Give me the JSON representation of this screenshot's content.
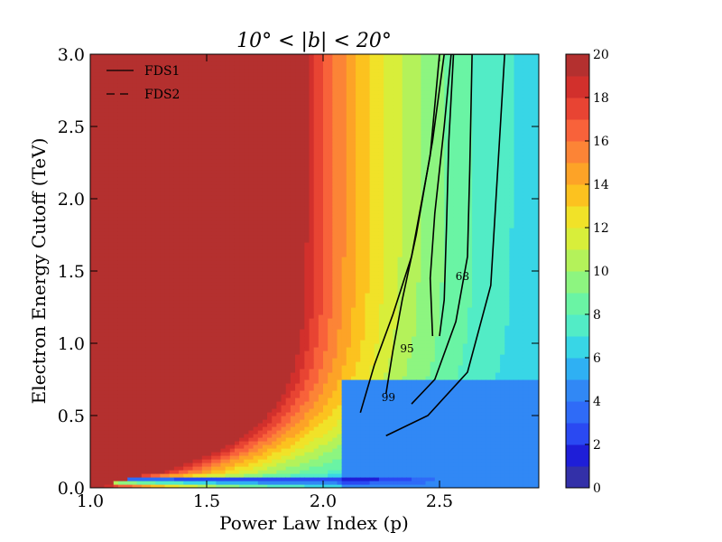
{
  "chart_data": {
    "type": "heatmap",
    "subtype": "filled-contour",
    "title": "10° < |b| < 20°",
    "xlabel": "Power Law Index (p)",
    "ylabel": "Electron Energy Cutoff (TeV)",
    "xlim": [
      1.0,
      3.0
    ],
    "ylim": [
      0.0,
      3.0
    ],
    "xticks": [
      1.0,
      1.5,
      2.0,
      2.5
    ],
    "yticks": [
      0.0,
      0.5,
      1.0,
      1.5,
      2.0,
      2.5,
      3.0
    ],
    "colorbar": {
      "min": 0,
      "max": 20,
      "step": 1,
      "ticks": [
        0,
        2,
        4,
        6,
        8,
        10,
        12,
        14,
        16,
        18,
        20
      ],
      "colors": [
        "#3330a8",
        "#1e1ed8",
        "#2a49f2",
        "#2f6bf7",
        "#3188f5",
        "#2fb0f3",
        "#38d6e6",
        "#52ecc6",
        "#6af4a4",
        "#8df580",
        "#b4f25a",
        "#d8ee3a",
        "#f1e228",
        "#fcc21f",
        "#fda327",
        "#fc8436",
        "#f8623a",
        "#e84433",
        "#d2302c",
        "#b4302f"
      ]
    },
    "legend": {
      "location": "upper-left",
      "entries": [
        {
          "label": "FDS1",
          "style": "solid"
        },
        {
          "label": "FDS2",
          "style": "dashed"
        }
      ]
    },
    "contour_lines": [
      {
        "label": "68",
        "points": [
          [
            2.47,
            1.05
          ],
          [
            2.46,
            1.45
          ],
          [
            2.48,
            1.9
          ],
          [
            2.52,
            2.5
          ],
          [
            2.55,
            3.0
          ]
        ],
        "return_points": [
          [
            2.56,
            3.0
          ],
          [
            2.54,
            2.4
          ],
          [
            2.53,
            1.8
          ],
          [
            2.52,
            1.3
          ],
          [
            2.5,
            1.05
          ]
        ]
      },
      {
        "label": "95",
        "points": [
          [
            2.27,
            0.65
          ],
          [
            2.3,
            0.95
          ],
          [
            2.34,
            1.3
          ],
          [
            2.4,
            1.75
          ],
          [
            2.47,
            2.4
          ],
          [
            2.52,
            3.0
          ]
        ],
        "return_points": [
          [
            2.64,
            3.0
          ],
          [
            2.63,
            2.2
          ],
          [
            2.62,
            1.6
          ],
          [
            2.57,
            1.15
          ],
          [
            2.48,
            0.75
          ],
          [
            2.38,
            0.58
          ]
        ]
      },
      {
        "label": "99",
        "points": [
          [
            2.16,
            0.52
          ],
          [
            2.22,
            0.85
          ],
          [
            2.3,
            1.2
          ],
          [
            2.38,
            1.6
          ],
          [
            2.46,
            2.3
          ],
          [
            2.5,
            3.0
          ]
        ],
        "return_points": [
          [
            2.78,
            3.0
          ],
          [
            2.75,
            2.2
          ],
          [
            2.72,
            1.4
          ],
          [
            2.62,
            0.8
          ],
          [
            2.45,
            0.5
          ],
          [
            2.27,
            0.36
          ]
        ]
      }
    ],
    "map_description": "Color values from 0 to 20; near-zero band at E ≈ 0.05 TeV, saturation (20) above the boundary curve at low p, background ~4.5 at high p."
  }
}
